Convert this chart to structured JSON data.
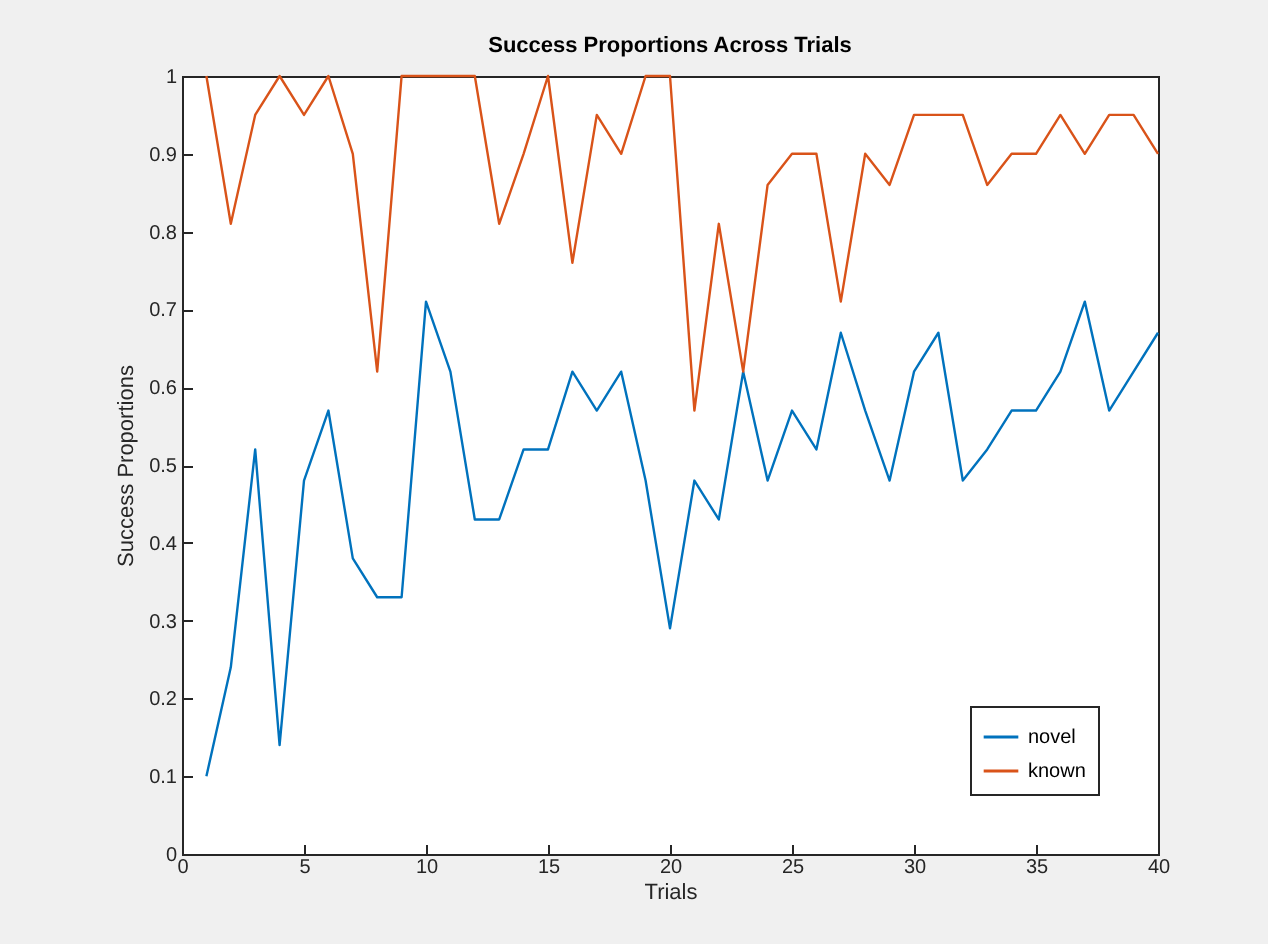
{
  "chart_data": {
    "type": "line",
    "title": "Success Proportions Across Trials",
    "xlabel": "Trials",
    "ylabel": "Success Proportions",
    "x": [
      1,
      2,
      3,
      4,
      5,
      6,
      7,
      8,
      9,
      10,
      11,
      12,
      13,
      14,
      15,
      16,
      17,
      18,
      19,
      20,
      21,
      22,
      23,
      24,
      25,
      26,
      27,
      28,
      29,
      30,
      31,
      32,
      33,
      34,
      35,
      36,
      37,
      38,
      39,
      40
    ],
    "series": [
      {
        "name": "novel",
        "color": "#0072bd",
        "values": [
          0.1,
          0.24,
          0.52,
          0.14,
          0.48,
          0.57,
          0.38,
          0.33,
          0.33,
          0.71,
          0.62,
          0.43,
          0.43,
          0.52,
          0.52,
          0.62,
          0.57,
          0.62,
          0.48,
          0.29,
          0.48,
          0.43,
          0.62,
          0.48,
          0.57,
          0.52,
          0.67,
          0.57,
          0.48,
          0.62,
          0.67,
          0.48,
          0.52,
          0.57,
          0.57,
          0.62,
          0.71,
          0.57,
          0.62,
          0.67
        ]
      },
      {
        "name": "known",
        "color": "#d95319",
        "values": [
          1,
          0.81,
          0.95,
          1,
          0.95,
          1,
          0.9,
          0.62,
          1,
          1,
          1,
          1,
          0.81,
          0.9,
          1,
          0.76,
          0.95,
          0.9,
          1,
          1,
          0.57,
          0.81,
          0.62,
          0.86,
          0.9,
          0.9,
          0.71,
          0.9,
          0.86,
          0.95,
          0.95,
          0.95,
          0.86,
          0.9,
          0.9,
          0.95,
          0.9,
          0.95,
          0.95,
          0.9
        ]
      }
    ],
    "xlim": [
      0,
      40
    ],
    "xticks": [
      0,
      5,
      10,
      15,
      20,
      25,
      30,
      35,
      40
    ],
    "ylim": [
      0,
      1
    ],
    "yticks": [
      0,
      0.1,
      0.2,
      0.3,
      0.4,
      0.5,
      0.6,
      0.7,
      0.8,
      0.9,
      1
    ],
    "grid": false,
    "legend": "bottom right",
    "marker": "none",
    "line_style": "solid"
  }
}
